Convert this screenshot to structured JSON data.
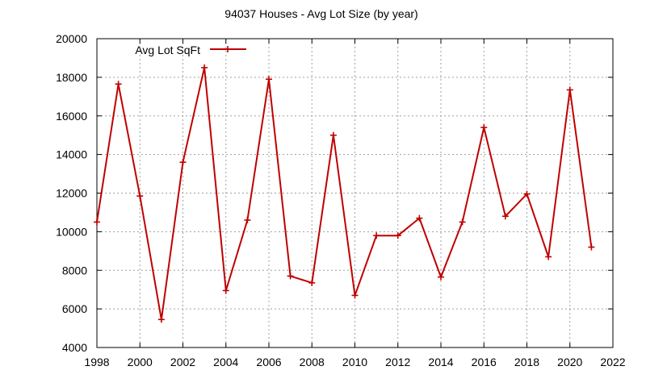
{
  "chart_data": {
    "type": "line",
    "title": "94037 Houses - Avg Lot Size (by year)",
    "xlabel": "",
    "ylabel": "",
    "xlim": [
      1998,
      2022
    ],
    "ylim": [
      4000,
      20000
    ],
    "x_ticks": [
      1998,
      2000,
      2002,
      2004,
      2006,
      2008,
      2010,
      2012,
      2014,
      2016,
      2018,
      2020,
      2022
    ],
    "y_ticks": [
      4000,
      6000,
      8000,
      10000,
      12000,
      14000,
      16000,
      18000,
      20000
    ],
    "grid": true,
    "legend_position": "top-left",
    "series": [
      {
        "name": "Avg Lot SqFt",
        "color": "#c00000",
        "marker": "plus",
        "x": [
          1998,
          1999,
          2000,
          2001,
          2002,
          2003,
          2004,
          2005,
          2006,
          2007,
          2008,
          2009,
          2010,
          2011,
          2012,
          2013,
          2014,
          2015,
          2016,
          2017,
          2018,
          2019,
          2020,
          2021
        ],
        "y": [
          10500,
          17650,
          11850,
          5450,
          13600,
          18500,
          6950,
          10600,
          17900,
          7700,
          7350,
          15000,
          6700,
          9800,
          9800,
          10700,
          7650,
          10500,
          15400,
          10800,
          11950,
          8700,
          17350,
          9200
        ]
      }
    ]
  }
}
